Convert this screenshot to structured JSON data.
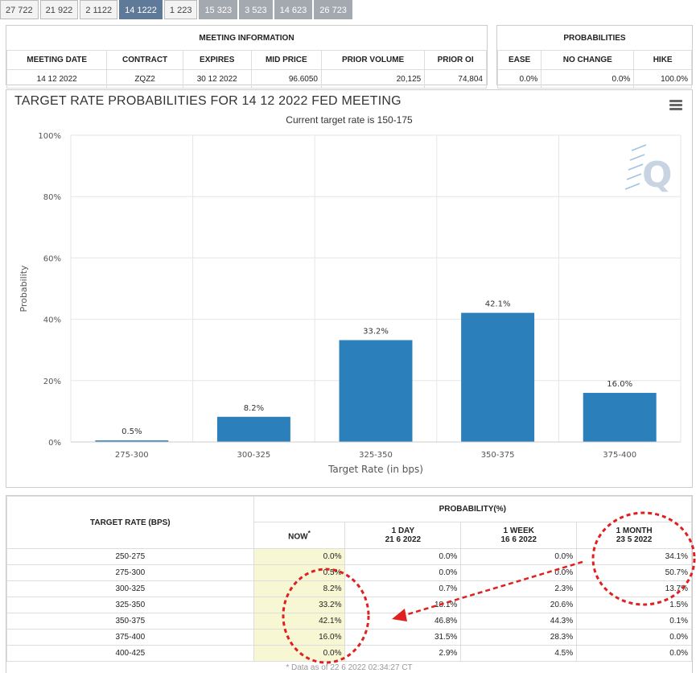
{
  "tabs": [
    {
      "label": "27 722",
      "style": "normal"
    },
    {
      "label": "21 922",
      "style": "normal"
    },
    {
      "label": "2 1122",
      "style": "normal"
    },
    {
      "label": "14 1222",
      "style": "active"
    },
    {
      "label": "1 223",
      "style": "normal"
    },
    {
      "label": "15 323",
      "style": "dark"
    },
    {
      "label": "3 523",
      "style": "dark"
    },
    {
      "label": "14 623",
      "style": "dark"
    },
    {
      "label": "26 723",
      "style": "dark"
    }
  ],
  "meeting_info": {
    "title": "MEETING INFORMATION",
    "headers": [
      "MEETING DATE",
      "CONTRACT",
      "EXPIRES",
      "MID PRICE",
      "PRIOR VOLUME",
      "PRIOR OI"
    ],
    "values": [
      "14 12 2022",
      "ZQZ2",
      "30 12 2022",
      "96.6050",
      "20,125",
      "74,804"
    ]
  },
  "probabilities": {
    "title": "PROBABILITIES",
    "headers": [
      "EASE",
      "NO CHANGE",
      "HIKE"
    ],
    "values": [
      "0.0%",
      "0.0%",
      "100.0%"
    ]
  },
  "chart": {
    "title": "TARGET RATE PROBABILITIES FOR 14 12 2022 FED MEETING",
    "subtitle": "Current target rate is 150-175",
    "logo": "Q",
    "bar_color": "#2b7fba"
  },
  "chart_data": {
    "type": "bar",
    "categories": [
      "275-300",
      "300-325",
      "325-350",
      "350-375",
      "375-400"
    ],
    "values": [
      0.5,
      8.2,
      33.2,
      42.1,
      16.0
    ],
    "data_labels": [
      "0.5%",
      "8.2%",
      "33.2%",
      "42.1%",
      "16.0%"
    ],
    "xlabel": "Target Rate (in bps)",
    "ylabel": "Probability",
    "ylim": [
      0,
      100
    ],
    "yticks": [
      "0%",
      "20%",
      "40%",
      "60%",
      "80%",
      "100%"
    ],
    "grid": true
  },
  "prob_table": {
    "target_header": "TARGET RATE (BPS)",
    "prob_header": "PROBABILITY(%)",
    "cols": [
      {
        "l1": "NOW",
        "l2": "",
        "star": "*"
      },
      {
        "l1": "1 DAY",
        "l2": "21 6 2022",
        "star": ""
      },
      {
        "l1": "1 WEEK",
        "l2": "16 6 2022",
        "star": ""
      },
      {
        "l1": "1 MONTH",
        "l2": "23 5 2022",
        "star": ""
      }
    ],
    "rows": [
      {
        "rate": "250-275",
        "now": "0.0%",
        "day": "0.0%",
        "week": "0.0%",
        "month": "34.1%"
      },
      {
        "rate": "275-300",
        "now": "0.5%",
        "day": "0.0%",
        "week": "0.0%",
        "month": "50.7%"
      },
      {
        "rate": "300-325",
        "now": "8.2%",
        "day": "0.7%",
        "week": "2.3%",
        "month": "13.7%"
      },
      {
        "rate": "325-350",
        "now": "33.2%",
        "day": "18.1%",
        "week": "20.6%",
        "month": "1.5%"
      },
      {
        "rate": "350-375",
        "now": "42.1%",
        "day": "46.8%",
        "week": "44.3%",
        "month": "0.1%"
      },
      {
        "rate": "375-400",
        "now": "16.0%",
        "day": "31.5%",
        "week": "28.3%",
        "month": "0.0%"
      },
      {
        "rate": "400-425",
        "now": "0.0%",
        "day": "2.9%",
        "week": "4.5%",
        "month": "0.0%"
      }
    ],
    "footnote": "* Data as of 22 6 2022 02:34:27 CT"
  },
  "annotation_color": "#e02020"
}
